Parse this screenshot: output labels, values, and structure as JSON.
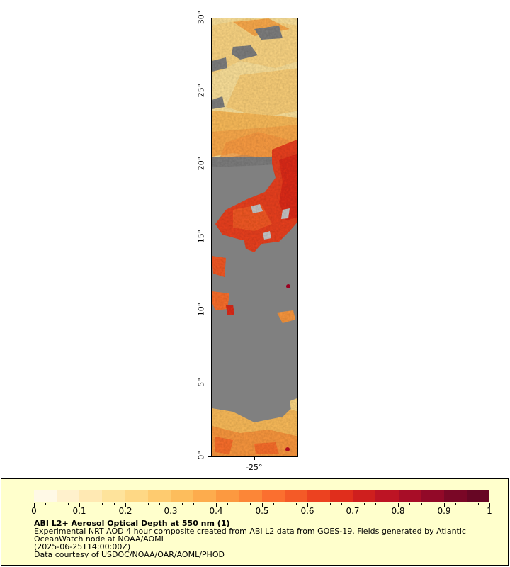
{
  "map": {
    "lat_labels": [
      "30°",
      "25°",
      "20°",
      "15°",
      "10°",
      "5°",
      "0°"
    ],
    "lon_labels": [
      "-25°"
    ],
    "no_data_color": "#808080",
    "land_shading_color": "#c8c8c8"
  },
  "legend": {
    "colorbar_labels": [
      "0",
      "0.1",
      "0.2",
      "0.3",
      "0.4",
      "0.5",
      "0.6",
      "0.7",
      "0.8",
      "0.9",
      "1"
    ],
    "title": "ABI L2+ Aerosol Optical Depth at 550 nm (1)",
    "line1": "Experimental NRT AOD 4 hour composite created from ABI L2 data from GOES-19. Fields generated by Atlantic",
    "line2": "OceanWatch node at NOAA/AOML",
    "line3": "(2025-06-25T14:00:00Z)",
    "line4": "Data courtesy of USDOC/NOAA/OAR/AOML/PHOD",
    "background": "#ffffcc",
    "colormap": [
      "#fff9e6",
      "#fff1cc",
      "#ffe9b3",
      "#fee39b",
      "#fed885",
      "#fecb6f",
      "#fdbd5c",
      "#fdac4d",
      "#fc9940",
      "#fc8637",
      "#fb6f2f",
      "#f45a27",
      "#ec4220",
      "#e02e1c",
      "#cf1f1e",
      "#bd1424",
      "#a80d27",
      "#920928",
      "#7a0726",
      "#670624"
    ]
  }
}
